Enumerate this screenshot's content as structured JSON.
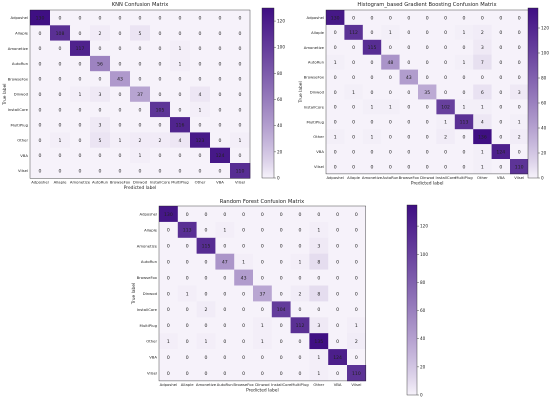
{
  "chart_data": [
    {
      "type": "heatmap",
      "title": "KNN Confusion Matrix",
      "xlabel": "Predicted label",
      "ylabel": "True label",
      "classes": [
        "Adposhel",
        "Allaple",
        "Amonetize",
        "AutoRun",
        "BrowseFox",
        "Dinwod",
        "InstallCore",
        "MultiPlug",
        "Other",
        "VBA",
        "Vilsel"
      ],
      "matrix": [
        [
          130,
          0,
          0,
          0,
          0,
          0,
          0,
          0,
          0,
          0,
          0
        ],
        [
          0,
          108,
          0,
          2,
          0,
          5,
          0,
          0,
          0,
          0,
          0
        ],
        [
          0,
          0,
          117,
          0,
          0,
          0,
          0,
          1,
          0,
          0,
          0
        ],
        [
          0,
          0,
          0,
          56,
          0,
          0,
          0,
          1,
          0,
          0,
          0
        ],
        [
          0,
          0,
          0,
          0,
          43,
          0,
          0,
          0,
          0,
          0,
          0
        ],
        [
          0,
          0,
          1,
          3,
          0,
          37,
          0,
          0,
          4,
          0,
          0
        ],
        [
          0,
          0,
          0,
          0,
          0,
          0,
          105,
          0,
          1,
          0,
          0
        ],
        [
          0,
          0,
          0,
          3,
          0,
          0,
          0,
          116,
          0,
          0,
          0
        ],
        [
          0,
          1,
          0,
          5,
          1,
          2,
          2,
          4,
          123,
          0,
          1
        ],
        [
          0,
          0,
          0,
          0,
          0,
          1,
          0,
          0,
          0,
          124,
          0
        ],
        [
          0,
          0,
          0,
          0,
          0,
          0,
          0,
          0,
          0,
          0,
          110
        ]
      ],
      "colorbar_ticks": [
        "0",
        "20",
        "40",
        "60",
        "80",
        "100",
        "120"
      ],
      "vmax": 130
    },
    {
      "type": "heatmap",
      "title": "Histogram_based Gradient Boosting Confusion Matrix",
      "xlabel": "Predicted label",
      "ylabel": "True label",
      "classes": [
        "Adposhel",
        "Allaple",
        "Amonetize",
        "AutoRun",
        "BrowseFox",
        "Dinwod",
        "InstallCore",
        "MultiPlug",
        "Other",
        "VBA",
        "Vilsel"
      ],
      "matrix": [
        [
          130,
          0,
          0,
          0,
          0,
          0,
          0,
          0,
          0,
          0,
          0
        ],
        [
          0,
          112,
          0,
          1,
          0,
          0,
          0,
          1,
          2,
          0,
          0
        ],
        [
          0,
          0,
          115,
          0,
          0,
          0,
          0,
          0,
          3,
          0,
          0
        ],
        [
          1,
          0,
          0,
          48,
          0,
          0,
          0,
          1,
          7,
          0,
          0
        ],
        [
          0,
          0,
          0,
          0,
          43,
          0,
          0,
          0,
          0,
          0,
          0
        ],
        [
          0,
          1,
          0,
          0,
          0,
          35,
          0,
          0,
          6,
          0,
          3
        ],
        [
          0,
          0,
          1,
          1,
          0,
          0,
          102,
          1,
          1,
          0,
          0
        ],
        [
          0,
          0,
          0,
          0,
          0,
          0,
          1,
          113,
          4,
          0,
          1
        ],
        [
          1,
          0,
          1,
          0,
          0,
          0,
          2,
          0,
          136,
          0,
          2
        ],
        [
          0,
          0,
          0,
          0,
          0,
          0,
          0,
          0,
          1,
          124,
          0
        ],
        [
          0,
          0,
          0,
          0,
          0,
          0,
          0,
          0,
          1,
          0,
          110
        ]
      ],
      "colorbar_ticks": [
        "0",
        "20",
        "40",
        "60",
        "80",
        "100",
        "120"
      ],
      "vmax": 136
    },
    {
      "type": "heatmap",
      "title": "Random Forest Confusion Matrix",
      "xlabel": "Predicted label",
      "ylabel": "True label",
      "classes": [
        "Adposhel",
        "Allaple",
        "Amonetize",
        "AutoRun",
        "BrowseFox",
        "Dinwod",
        "InstallCore",
        "MultiPlug",
        "Other",
        "VBA",
        "Vilsel"
      ],
      "matrix": [
        [
          130,
          0,
          0,
          0,
          0,
          0,
          0,
          0,
          0,
          0,
          0
        ],
        [
          0,
          113,
          0,
          1,
          0,
          0,
          0,
          0,
          1,
          0,
          0
        ],
        [
          0,
          0,
          115,
          0,
          0,
          0,
          0,
          0,
          3,
          0,
          0
        ],
        [
          0,
          0,
          0,
          47,
          1,
          0,
          0,
          1,
          8,
          0,
          0
        ],
        [
          0,
          0,
          0,
          0,
          43,
          0,
          0,
          0,
          0,
          0,
          0
        ],
        [
          0,
          1,
          0,
          0,
          0,
          37,
          0,
          2,
          8,
          0,
          0
        ],
        [
          0,
          0,
          2,
          0,
          0,
          0,
          104,
          0,
          0,
          0,
          0
        ],
        [
          0,
          0,
          0,
          0,
          0,
          1,
          0,
          112,
          3,
          0,
          1
        ],
        [
          1,
          0,
          1,
          0,
          0,
          1,
          0,
          0,
          135,
          0,
          2
        ],
        [
          0,
          0,
          0,
          0,
          0,
          0,
          0,
          0,
          1,
          124,
          0
        ],
        [
          0,
          0,
          0,
          0,
          0,
          0,
          0,
          0,
          1,
          0,
          110
        ]
      ],
      "colorbar_ticks": [
        "0",
        "20",
        "40",
        "60",
        "80",
        "100",
        "120"
      ],
      "vmax": 135
    }
  ],
  "colors": {
    "low": "#f6f2fa",
    "high": "#3f0f83"
  }
}
